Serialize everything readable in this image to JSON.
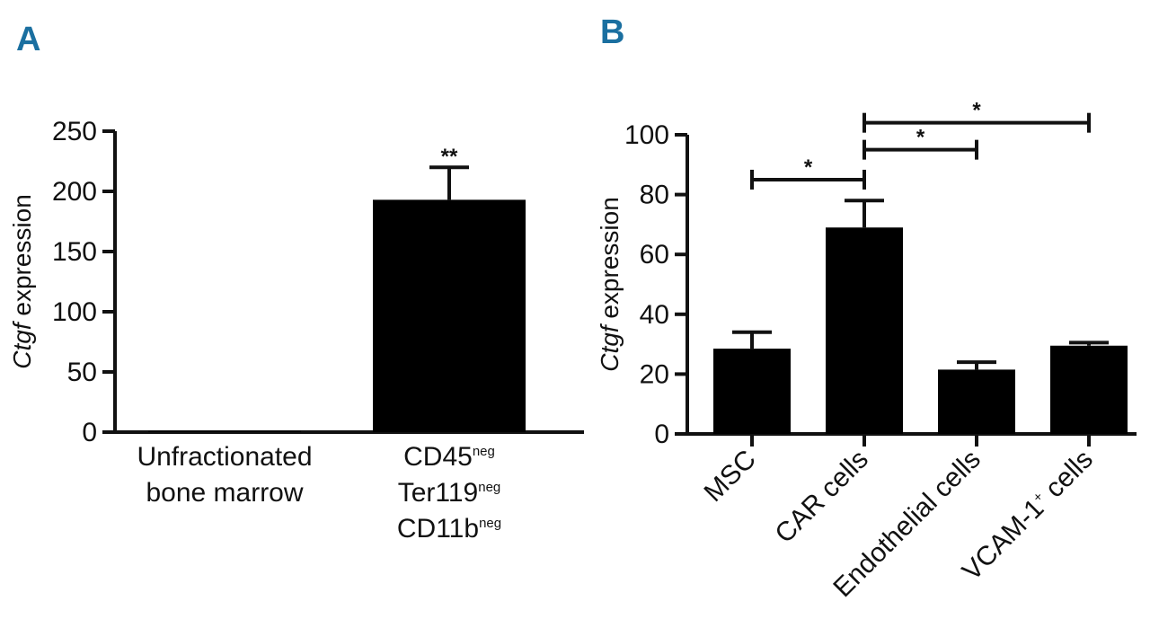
{
  "panel_letter_color": "#1a6fa0",
  "bar_color": "#000000",
  "chart_data": [
    {
      "panel": "A",
      "type": "bar",
      "ylabel_italic": "Ctgf",
      "ylabel_rest": " expression",
      "ylim": [
        0,
        250
      ],
      "yticks": [
        0,
        50,
        100,
        150,
        200,
        250
      ],
      "categories": [
        {
          "lines": [
            {
              "text": "Unfractionated"
            },
            {
              "text": "bone marrow"
            }
          ]
        },
        {
          "lines": [
            {
              "text": "CD45",
              "sup": "neg"
            },
            {
              "text": "Ter119",
              "sup": "neg"
            },
            {
              "text": "CD11b",
              "sup": "neg"
            }
          ]
        }
      ],
      "values": [
        1,
        193
      ],
      "errors": [
        0,
        27
      ],
      "significance": [
        {
          "label": "**",
          "on": 1
        }
      ]
    },
    {
      "panel": "B",
      "type": "bar",
      "ylabel_italic": "Ctgf",
      "ylabel_rest": " expression",
      "ylim": [
        0,
        100
      ],
      "yticks": [
        0,
        20,
        40,
        60,
        80,
        100
      ],
      "categories": [
        {
          "lines": [
            {
              "text": "MSC"
            }
          ]
        },
        {
          "lines": [
            {
              "text": "CAR cells"
            }
          ]
        },
        {
          "lines": [
            {
              "text": "Endothelial cells"
            }
          ]
        },
        {
          "lines": [
            {
              "text": "VCAM-1",
              "sup": "+",
              "after": " cells"
            }
          ]
        }
      ],
      "values": [
        28.5,
        69,
        21.5,
        29.5
      ],
      "errors": [
        5.5,
        9,
        2.5,
        1
      ],
      "brackets": [
        {
          "from": 0,
          "to": 1,
          "y": 85,
          "label": "*"
        },
        {
          "from": 1,
          "to": 2,
          "y": 95,
          "label": "*"
        },
        {
          "from": 1,
          "to": 3,
          "y": 104,
          "label": "*"
        }
      ]
    }
  ]
}
